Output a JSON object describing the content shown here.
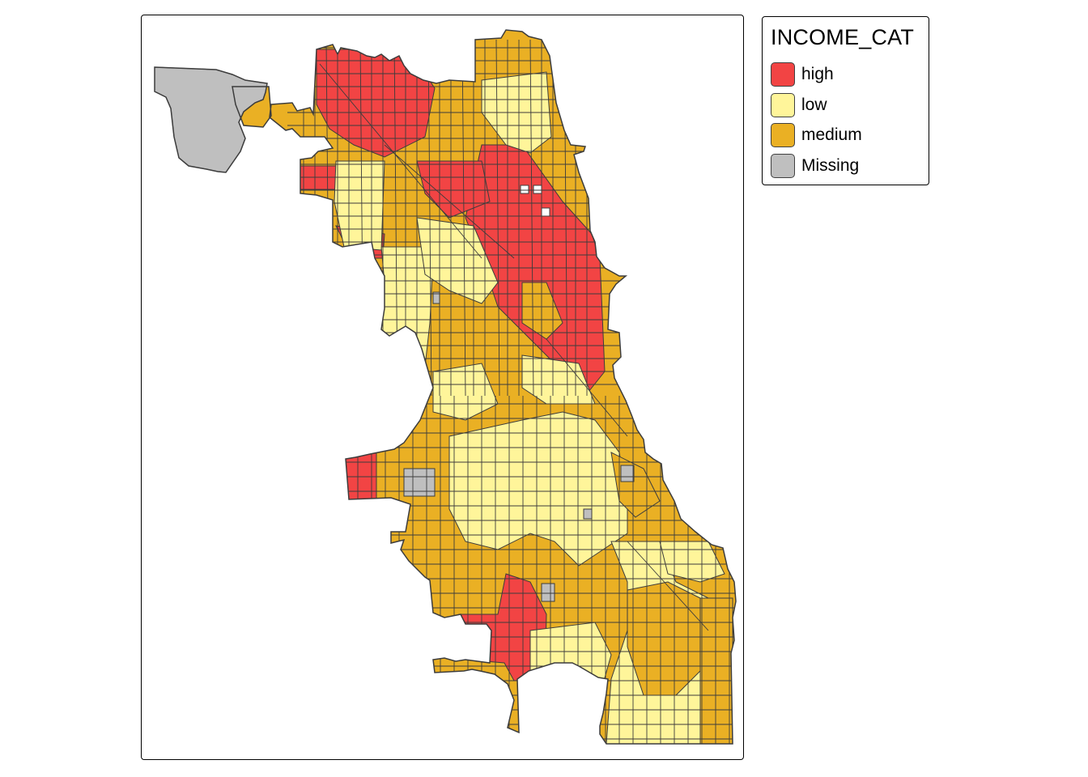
{
  "map": {
    "type": "choropleth",
    "variable": "INCOME_CAT",
    "colors": {
      "high": "#f24444",
      "low": "#fff59a",
      "medium": "#eab024",
      "missing": "#bfbfbf",
      "border": "#3c3c3c"
    }
  },
  "legend": {
    "title": "INCOME_CAT",
    "items": [
      {
        "label": "high",
        "color": "#f24444"
      },
      {
        "label": "low",
        "color": "#fff59a"
      },
      {
        "label": "medium",
        "color": "#eab024"
      },
      {
        "label": "Missing",
        "color": "#bfbfbf"
      }
    ]
  }
}
